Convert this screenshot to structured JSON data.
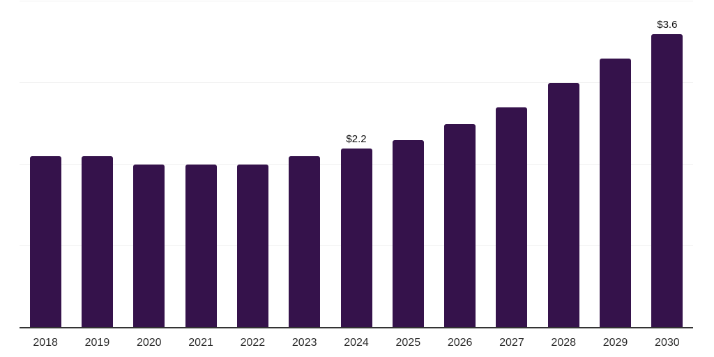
{
  "chart_data": {
    "type": "bar",
    "title": "",
    "xlabel": "",
    "ylabel": "",
    "categories": [
      "2018",
      "2019",
      "2020",
      "2021",
      "2022",
      "2023",
      "2024",
      "2025",
      "2026",
      "2027",
      "2028",
      "2029",
      "2030"
    ],
    "values": [
      2.1,
      2.1,
      2.0,
      2.0,
      2.0,
      2.1,
      2.2,
      2.3,
      2.5,
      2.7,
      3.0,
      3.3,
      3.6
    ],
    "ylim": [
      0,
      4
    ],
    "gridline_levels": [
      1,
      2,
      3,
      4
    ],
    "grid": "horizontal-only",
    "legend": "none",
    "y_axis_labels_visible": false,
    "annotations": [
      {
        "category": "2024",
        "text": "$2.2"
      },
      {
        "category": "2030",
        "text": "$3.6"
      }
    ],
    "colors": {
      "bar": "#35124B",
      "gridline": "#f0f0f0",
      "axis_line": "#333333",
      "value_label_text": "#0d0d0d",
      "tick_label_text": "#2b2b2b",
      "background": "#ffffff"
    }
  }
}
